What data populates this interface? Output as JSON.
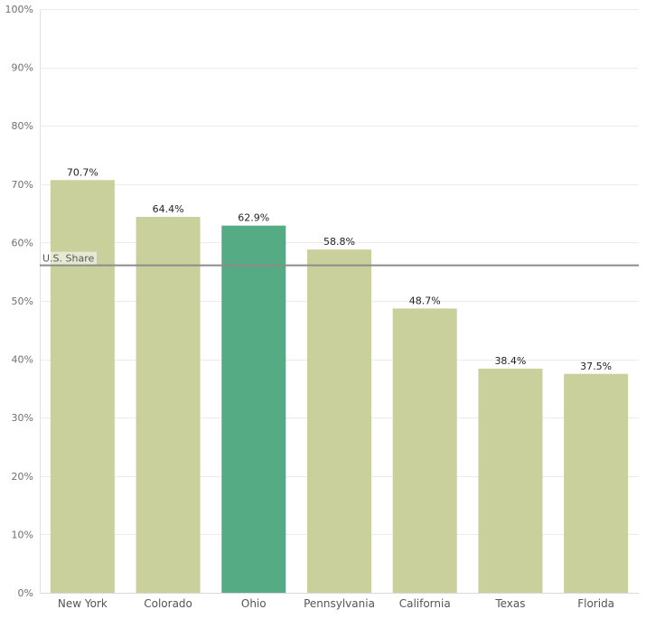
{
  "chart_data": {
    "type": "bar",
    "title": "",
    "xlabel": "",
    "ylabel": "",
    "categories": [
      "New York",
      "Colorado",
      "Ohio",
      "Pennsylvania",
      "California",
      "Texas",
      "Florida"
    ],
    "values": [
      70.7,
      64.4,
      62.9,
      58.8,
      48.7,
      38.4,
      37.5
    ],
    "value_labels": [
      "70.7%",
      "64.4%",
      "62.9%",
      "58.8%",
      "48.7%",
      "38.4%",
      "37.5%"
    ],
    "highlight_category": "Ohio",
    "ylim": [
      0,
      100
    ],
    "yticks": [
      0,
      10,
      20,
      30,
      40,
      50,
      60,
      70,
      80,
      90,
      100
    ],
    "ytick_labels": [
      "0%",
      "10%",
      "20%",
      "30%",
      "40%",
      "50%",
      "60%",
      "70%",
      "80%",
      "90%",
      "100%"
    ],
    "grid": true,
    "reference_line": {
      "label": "U.S. Share",
      "value": 56.1
    },
    "colors": {
      "bar": "#c9d09b",
      "highlight": "#55ab84",
      "reference_line": "#8c8c8c",
      "grid": "#ececec"
    }
  }
}
